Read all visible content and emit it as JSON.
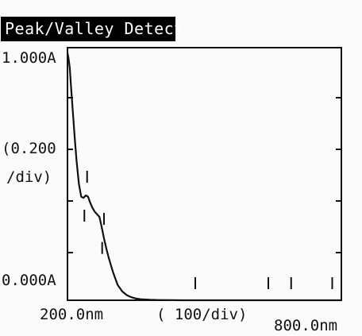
{
  "screen": {
    "title": "Peak/Valley Detect"
  },
  "chart_data": {
    "type": "line",
    "xlabel": "( 100/div)",
    "ylabel_lines": [
      "(0.200",
      "/div)"
    ],
    "x_tick_labels": [
      "200.0nm",
      "800.0nm"
    ],
    "y_tick_labels": [
      "1.000A",
      "0.000A"
    ],
    "xlim": [
      200,
      800
    ],
    "ylim": [
      0,
      1
    ],
    "x_unit": "nm",
    "y_unit": "A",
    "series": [
      {
        "x": [
          200,
          202,
          205,
          208,
          212,
          216,
          220,
          225,
          230,
          235,
          240,
          245,
          250,
          255,
          260,
          265,
          270,
          275,
          280,
          285,
          290,
          295,
          300,
          305,
          310,
          320,
          330,
          340,
          350,
          360,
          380,
          400,
          450,
          500,
          550,
          600,
          700,
          800
        ],
        "y": [
          0.98,
          0.96,
          0.92,
          0.84,
          0.74,
          0.64,
          0.55,
          0.46,
          0.41,
          0.405,
          0.415,
          0.41,
          0.385,
          0.365,
          0.35,
          0.34,
          0.33,
          0.29,
          0.245,
          0.205,
          0.17,
          0.14,
          0.11,
          0.085,
          0.06,
          0.035,
          0.02,
          0.012,
          0.007,
          0.004,
          0.002,
          0.001,
          0.0,
          0.0,
          0.0,
          0.0,
          0.0,
          0.0
        ]
      }
    ],
    "peak_markers_x": [
      243,
      280
    ],
    "valley_markers_x": [
      237,
      276
    ],
    "baseline_markers_x": [
      480,
      640,
      690,
      780
    ],
    "grid": false
  }
}
